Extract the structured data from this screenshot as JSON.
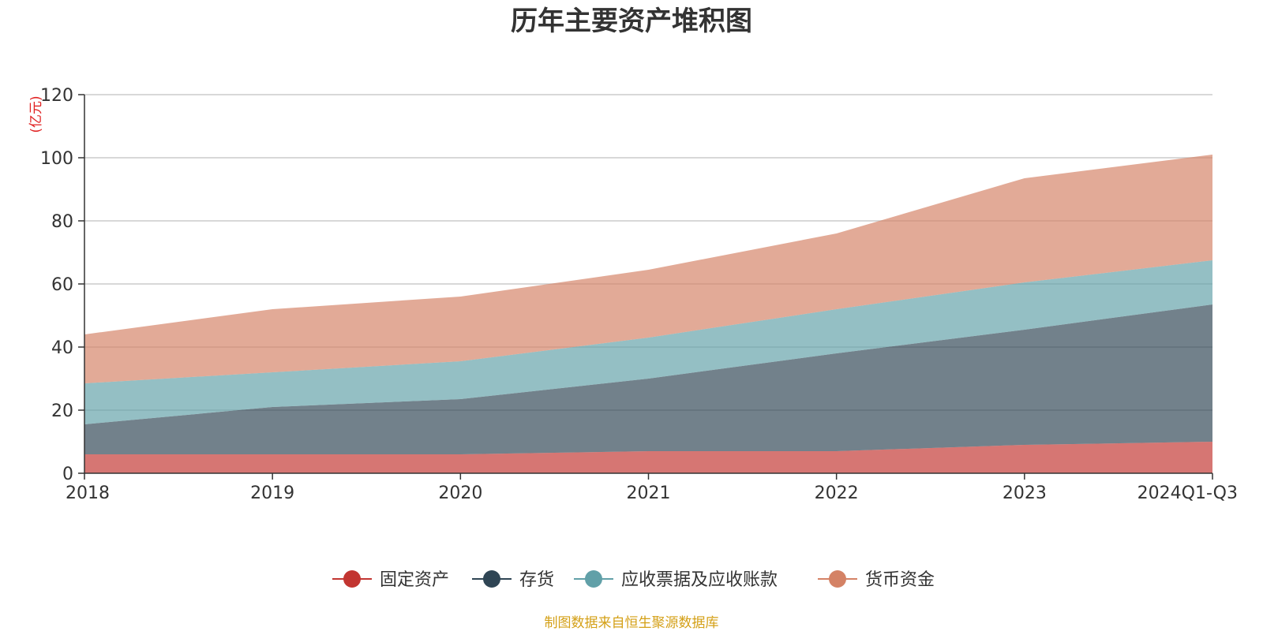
{
  "chart_data": {
    "type": "area",
    "title": "历年主要资产堆积图",
    "unit_label": "(亿元)",
    "source": "制图数据来自恒生聚源数据库",
    "stacked": true,
    "categories": [
      "2018",
      "2019",
      "2020",
      "2021",
      "2022",
      "2023",
      "2024Q1-Q3"
    ],
    "y_ticks": [
      "0",
      "20",
      "40",
      "60",
      "80",
      "100",
      "120"
    ],
    "ylim": [
      0,
      120
    ],
    "grid": true,
    "legend_position": "bottom",
    "series": [
      {
        "name": "固定资产",
        "color": "#c23531",
        "values": [
          6,
          6,
          6,
          7,
          7,
          9,
          10
        ]
      },
      {
        "name": "存货",
        "color": "#2f4554",
        "values": [
          9.5,
          15,
          17.5,
          23,
          31,
          36.5,
          43.5
        ]
      },
      {
        "name": "应收票据及应收账款",
        "color": "#61a0a8",
        "values": [
          13,
          11,
          12,
          13,
          14,
          15,
          14
        ]
      },
      {
        "name": "货币资金",
        "color": "#d48265",
        "values": [
          15.5,
          20,
          20.5,
          21.5,
          24,
          33,
          33.5
        ]
      }
    ]
  }
}
